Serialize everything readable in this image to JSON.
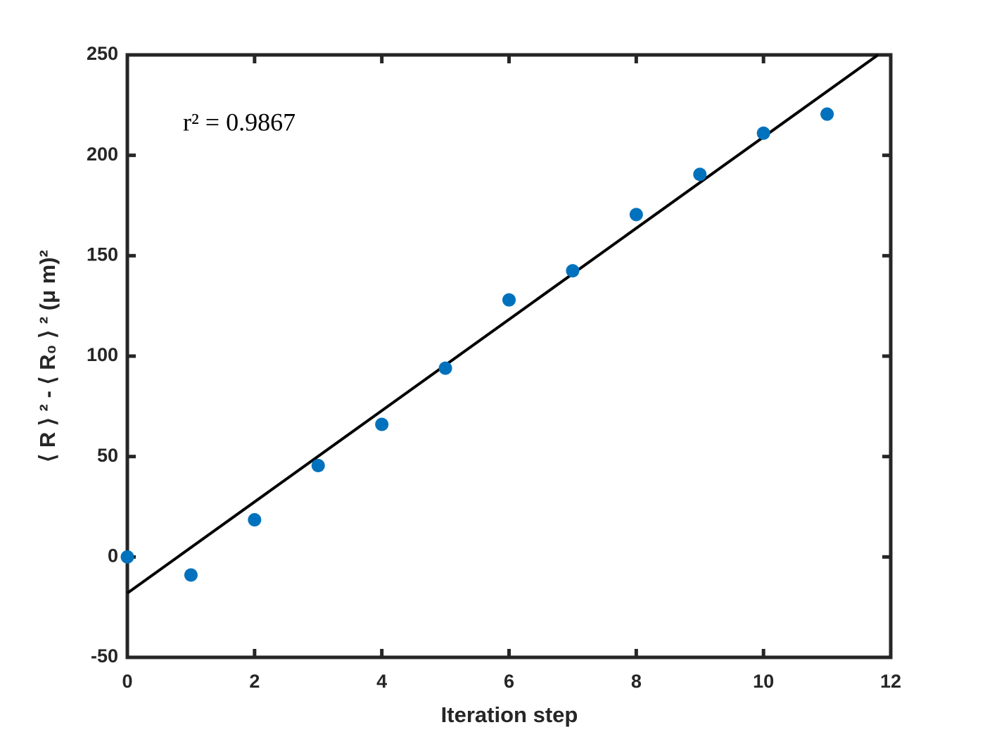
{
  "chart_data": {
    "type": "scatter",
    "xlabel": "Iteration step",
    "ylabel": "⟨ R ⟩ ² - ⟨ R₀ ⟩ ² (μ m)²",
    "annotation": "r² = 0.9867",
    "series": [
      {
        "color": "#0072bd",
        "x": [
          0,
          1,
          2,
          3,
          4,
          5,
          6,
          7,
          8,
          9,
          10,
          11
        ],
        "values": [
          0,
          -9,
          18.5,
          45.5,
          66,
          94,
          128,
          142.5,
          170.5,
          190.5,
          211,
          220.5
        ]
      }
    ],
    "fit_line": {
      "color": "#000000",
      "x": [
        0,
        11.8
      ],
      "values": [
        -18,
        250
      ]
    },
    "xlim": [
      0,
      12
    ],
    "xticks": [
      0,
      2,
      4,
      6,
      8,
      10,
      12
    ],
    "ylim": [
      -50,
      250
    ],
    "yticks": [
      -50,
      0,
      50,
      100,
      150,
      200,
      250
    ],
    "grid": false
  }
}
